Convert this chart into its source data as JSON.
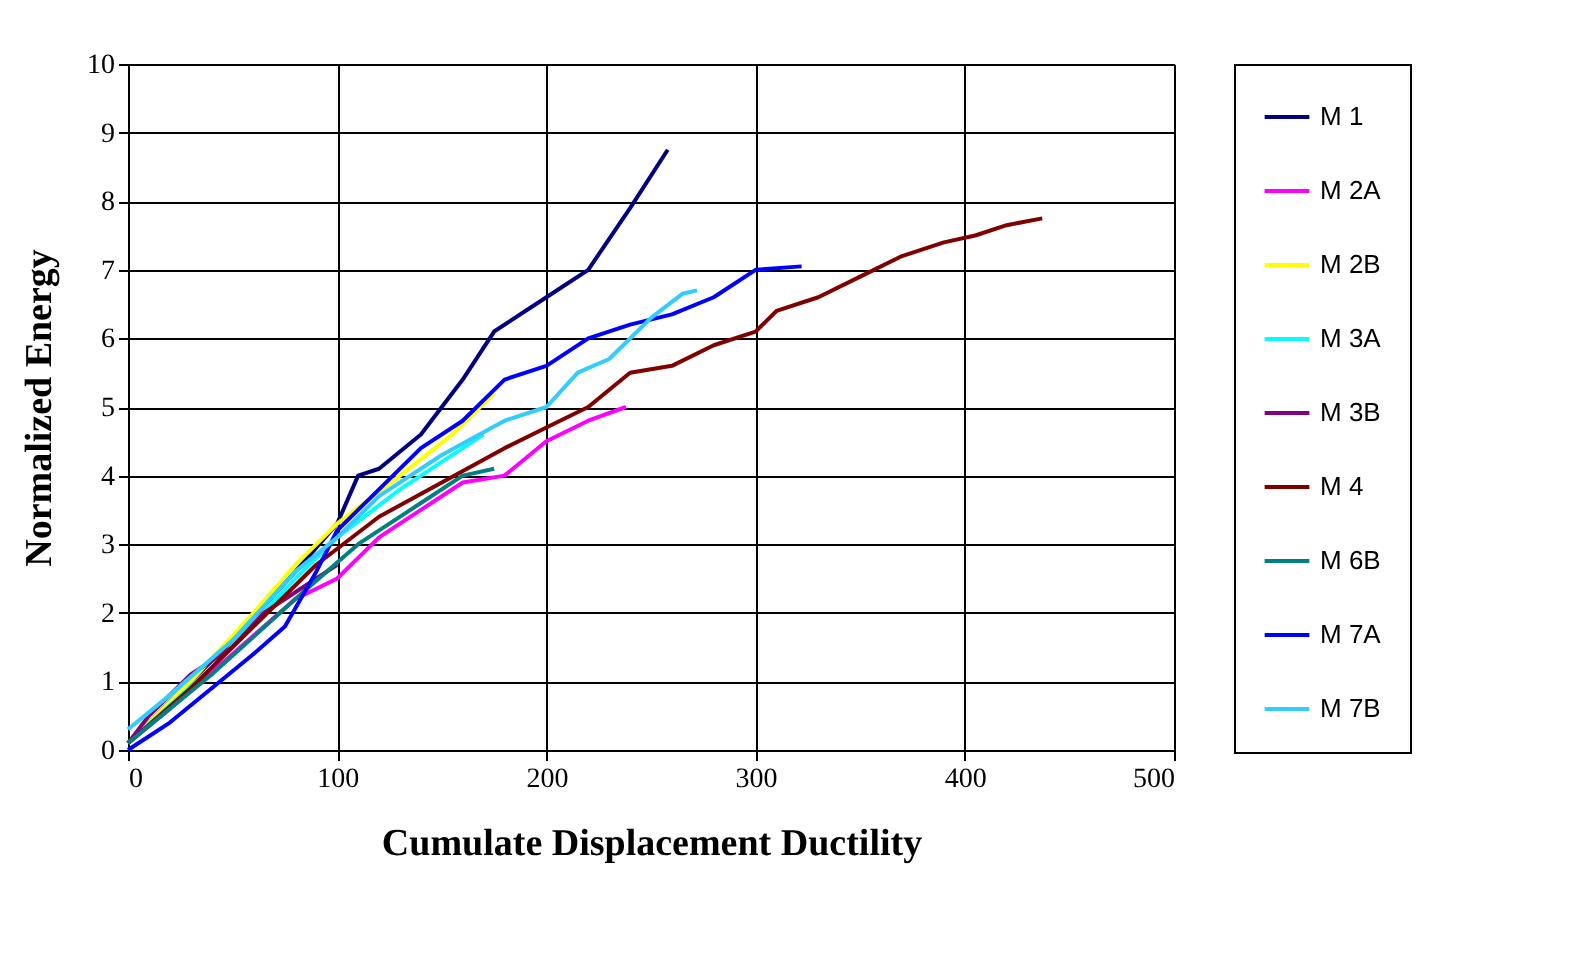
{
  "chart_data": {
    "type": "line",
    "xlabel": "Cumulate Displacement Ductility",
    "ylabel": "Normalized Energy",
    "xlim": [
      0,
      500
    ],
    "xticks": [
      0,
      100,
      200,
      300,
      400,
      500
    ],
    "ylim": [
      0,
      10
    ],
    "yticks": [
      0,
      1,
      2,
      3,
      4,
      5,
      6,
      7,
      8,
      9,
      10
    ],
    "grid": true,
    "legend": "right",
    "marker": "none",
    "line_style": "solid",
    "series": [
      {
        "name": "M 1",
        "color": "#000080",
        "x": [
          0,
          20,
          50,
          80,
          100,
          110,
          120,
          140,
          160,
          175,
          200,
          220,
          240,
          258
        ],
        "values": [
          0.1,
          0.7,
          1.6,
          2.6,
          3.3,
          4.0,
          4.1,
          4.6,
          5.4,
          6.1,
          6.6,
          7.0,
          7.9,
          8.75
        ]
      },
      {
        "name": "M 2A",
        "color": "#ff00ff",
        "x": [
          0,
          20,
          50,
          80,
          100,
          120,
          140,
          160,
          180,
          200,
          220,
          238
        ],
        "values": [
          0.1,
          0.6,
          1.4,
          2.2,
          2.5,
          3.1,
          3.5,
          3.9,
          4.0,
          4.5,
          4.8,
          5.0
        ]
      },
      {
        "name": "M 2B",
        "color": "#ffff00",
        "x": [
          0,
          30,
          60,
          80,
          100,
          130,
          155,
          175
        ],
        "values": [
          0.1,
          1.0,
          2.0,
          2.7,
          3.3,
          4.0,
          4.6,
          5.2
        ]
      },
      {
        "name": "M 3A",
        "color": "#00ffff",
        "x": [
          0,
          40,
          80,
          100,
          130,
          160,
          170
        ],
        "values": [
          0.1,
          1.2,
          2.5,
          3.1,
          3.8,
          4.4,
          4.6
        ]
      },
      {
        "name": "M 3B",
        "color": "#800080",
        "x": [
          0,
          10,
          30,
          50,
          65,
          80,
          100
        ],
        "values": [
          0.1,
          0.5,
          1.1,
          1.5,
          2.0,
          2.3,
          2.7
        ]
      },
      {
        "name": "M 4",
        "color": "#800000",
        "x": [
          0,
          30,
          60,
          90,
          120,
          150,
          180,
          200,
          220,
          240,
          260,
          280,
          300,
          310,
          330,
          350,
          370,
          390,
          405,
          420,
          437
        ],
        "values": [
          0.1,
          0.9,
          1.8,
          2.7,
          3.4,
          3.9,
          4.4,
          4.7,
          5.0,
          5.5,
          5.6,
          5.9,
          6.1,
          6.4,
          6.6,
          6.9,
          7.2,
          7.4,
          7.5,
          7.65,
          7.75
        ]
      },
      {
        "name": "M 6B",
        "color": "#008080",
        "x": [
          0,
          40,
          80,
          110,
          140,
          160,
          175
        ],
        "values": [
          0.1,
          1.1,
          2.2,
          3.0,
          3.6,
          4.0,
          4.1
        ]
      },
      {
        "name": "M 7A",
        "color": "#0000ff",
        "x": [
          0,
          20,
          40,
          60,
          75,
          90,
          100,
          120,
          140,
          160,
          180,
          200,
          220,
          240,
          260,
          280,
          300,
          322
        ],
        "values": [
          0,
          0.4,
          0.9,
          1.4,
          1.8,
          2.6,
          3.2,
          3.8,
          4.4,
          4.8,
          5.4,
          5.6,
          6.0,
          6.2,
          6.35,
          6.6,
          7.0,
          7.05
        ]
      },
      {
        "name": "M 7B",
        "color": "#33ccff",
        "x": [
          0,
          20,
          50,
          80,
          100,
          120,
          150,
          180,
          200,
          215,
          230,
          250,
          265,
          272
        ],
        "values": [
          0.3,
          0.8,
          1.6,
          2.6,
          3.1,
          3.7,
          4.3,
          4.8,
          5.0,
          5.5,
          5.7,
          6.3,
          6.65,
          6.7
        ]
      }
    ]
  }
}
